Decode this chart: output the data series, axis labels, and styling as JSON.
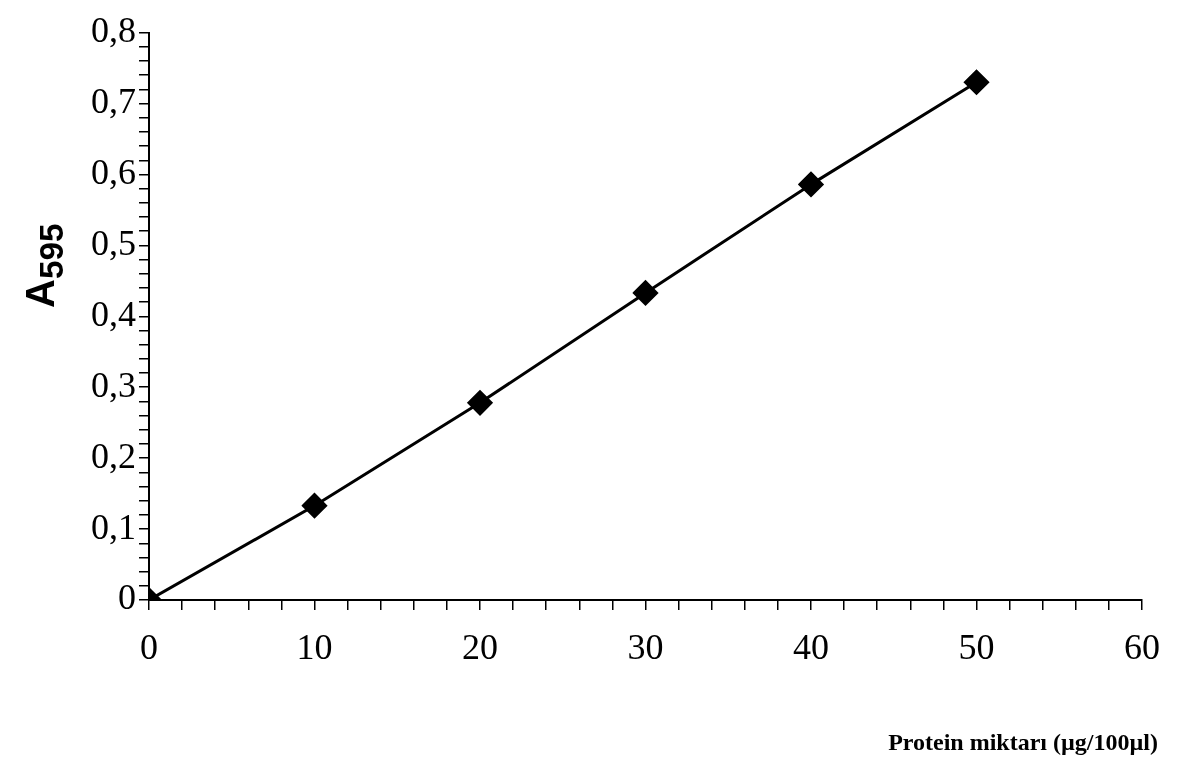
{
  "chart_data": {
    "type": "line",
    "xlabel": "Protein miktarı (µg/100µl)",
    "ylabel": "A$_{595}$",
    "x": [
      0,
      10,
      20,
      30,
      40,
      50
    ],
    "series": [
      {
        "color": "#000000",
        "values": [
          0,
          0.133,
          0.278,
          0.433,
          0.586,
          0.73
        ]
      }
    ],
    "marker": "diamond",
    "line_style": "solid",
    "legend": false,
    "grid": false,
    "xlim": [
      0,
      60
    ],
    "ylim": [
      0,
      0.8
    ],
    "xticks": [
      0,
      {
        "value": 2,
        "label": null
      },
      {
        "value": 4,
        "label": null
      },
      {
        "value": 6,
        "label": null
      },
      {
        "value": 8,
        "label": null
      },
      10,
      {
        "value": 12,
        "label": null
      },
      {
        "value": 14,
        "label": null
      },
      {
        "value": 16,
        "label": null
      },
      {
        "value": 18,
        "label": null
      },
      20,
      {
        "value": 22,
        "label": null
      },
      {
        "value": 24,
        "label": null
      },
      {
        "value": 26,
        "label": null
      },
      {
        "value": 28,
        "label": null
      },
      30,
      {
        "value": 32,
        "label": null
      },
      {
        "value": 34,
        "label": null
      },
      {
        "value": 36,
        "label": null
      },
      {
        "value": 38,
        "label": null
      },
      40,
      {
        "value": 42,
        "label": null
      },
      {
        "value": 44,
        "label": null
      },
      {
        "value": 46,
        "label": null
      },
      {
        "value": 48,
        "label": null
      },
      50,
      {
        "value": 52,
        "label": null
      },
      {
        "value": 54,
        "label": null
      },
      {
        "value": 56,
        "label": null
      },
      {
        "value": 58,
        "label": null
      },
      60
    ],
    "yticks": [
      0,
      {
        "value": 0.02,
        "label": null
      },
      {
        "value": 0.04,
        "label": null
      },
      {
        "value": 0.06,
        "label": null
      },
      {
        "value": 0.08,
        "label": null
      },
      {
        "value": 0.1,
        "label": "0,1"
      },
      {
        "value": 0.12,
        "label": null
      },
      {
        "value": 0.14,
        "label": null
      },
      {
        "value": 0.16,
        "label": null
      },
      {
        "value": 0.18,
        "label": null
      },
      {
        "value": 0.2,
        "label": "0,2"
      },
      {
        "value": 0.22,
        "label": null
      },
      {
        "value": 0.24,
        "label": null
      },
      {
        "value": 0.26,
        "label": null
      },
      {
        "value": 0.28,
        "label": null
      },
      {
        "value": 0.3,
        "label": "0,3"
      },
      {
        "value": 0.32,
        "label": null
      },
      {
        "value": 0.34,
        "label": null
      },
      {
        "value": 0.36,
        "label": null
      },
      {
        "value": 0.38,
        "label": null
      },
      {
        "value": 0.4,
        "label": "0,4"
      },
      {
        "value": 0.42,
        "label": null
      },
      {
        "value": 0.44,
        "label": null
      },
      {
        "value": 0.46,
        "label": null
      },
      {
        "value": 0.48,
        "label": null
      },
      {
        "value": 0.5,
        "label": "0,5"
      },
      {
        "value": 0.52,
        "label": null
      },
      {
        "value": 0.54,
        "label": null
      },
      {
        "value": 0.56,
        "label": null
      },
      {
        "value": 0.58,
        "label": null
      },
      {
        "value": 0.6,
        "label": "0,6"
      },
      {
        "value": 0.62,
        "label": null
      },
      {
        "value": 0.64,
        "label": null
      },
      {
        "value": 0.66,
        "label": null
      },
      {
        "value": 0.68,
        "label": null
      },
      {
        "value": 0.7,
        "label": "0,7"
      },
      {
        "value": 0.72,
        "label": null
      },
      {
        "value": 0.74,
        "label": null
      },
      {
        "value": 0.76,
        "label": null
      },
      {
        "value": 0.78,
        "label": null
      },
      {
        "value": 0.8,
        "label": "0,8"
      }
    ]
  }
}
